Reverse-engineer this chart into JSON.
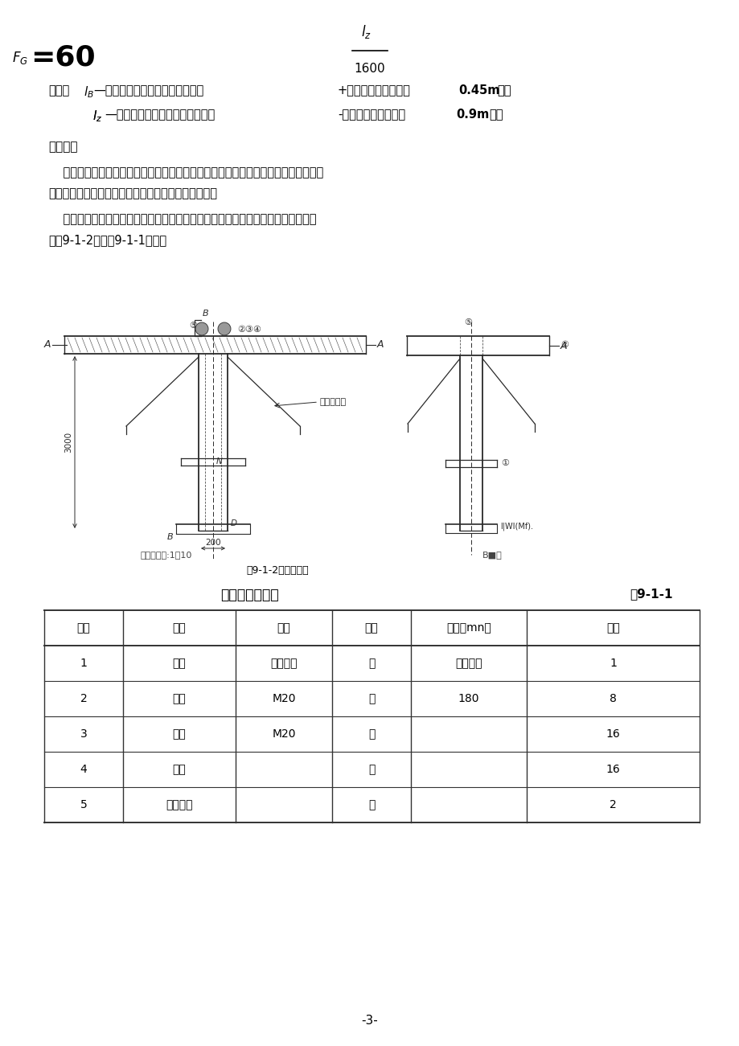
{
  "page_number": "-3-",
  "bg_color": "#ffffff",
  "text_color": "#000000",
  "table_headers": [
    "序号",
    "名称",
    "规格",
    "单位",
    "长度（mn）",
    "数量"
  ],
  "table_rows": [
    [
      "1",
      "吸柱",
      "按设计选",
      "根",
      "按设计选",
      "1"
    ],
    [
      "2",
      "褴栓",
      "M20",
      "根",
      "180",
      "8"
    ],
    [
      "3",
      "褴母",
      "M20",
      "个",
      "",
      "16"
    ],
    [
      "4",
      "垫片",
      "",
      "个",
      "",
      "16"
    ],
    [
      "5",
      "上固定杆",
      "",
      "套",
      "",
      "2"
    ]
  ]
}
